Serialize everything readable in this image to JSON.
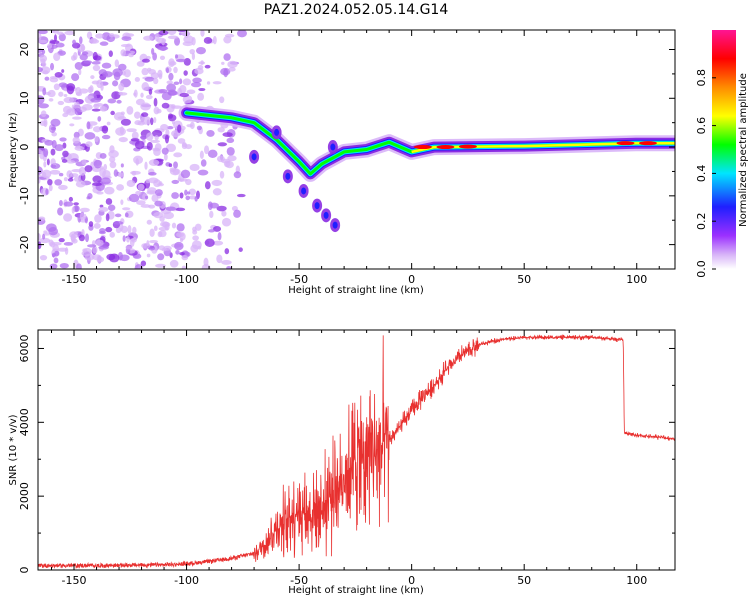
{
  "title": "PAZ1.2024.052.05.14.G14",
  "chart_data": [
    {
      "type": "heatmap",
      "xlabel": "Height of straight line (km)",
      "ylabel": "Frequency (Hz)",
      "xlim": [
        -166,
        117
      ],
      "ylim": [
        -25,
        24
      ],
      "xticks": [
        -150,
        -100,
        -50,
        0,
        50,
        100
      ],
      "yticks": [
        -20,
        -10,
        0,
        10,
        20
      ],
      "colorbar": {
        "label": "Normalized spectral amplitude",
        "range": [
          0,
          1
        ],
        "ticks": [
          0.0,
          0.2,
          0.4,
          0.6,
          0.8
        ],
        "colors": [
          "#ffffff",
          "#d8b4f8",
          "#8a2be2",
          "#1f1fff",
          "#00e5ff",
          "#00ff00",
          "#ffff00",
          "#ff8c00",
          "#ff0000",
          "#ff1493"
        ]
      },
      "ridge": [
        {
          "x": -100,
          "y": 7.0
        },
        {
          "x": -90,
          "y": 6.5
        },
        {
          "x": -80,
          "y": 6.0
        },
        {
          "x": -70,
          "y": 5.0
        },
        {
          "x": -60,
          "y": 1.5
        },
        {
          "x": -50,
          "y": -3.0
        },
        {
          "x": -45,
          "y": -5.5
        },
        {
          "x": -40,
          "y": -3.5
        },
        {
          "x": -30,
          "y": -1.0
        },
        {
          "x": -20,
          "y": -0.5
        },
        {
          "x": -10,
          "y": 1.0
        },
        {
          "x": 0,
          "y": -1.0
        },
        {
          "x": 10,
          "y": 0.0
        },
        {
          "x": 50,
          "y": 0.2
        },
        {
          "x": 100,
          "y": 0.8
        },
        {
          "x": 117,
          "y": 0.8
        }
      ],
      "noise_region_x": [
        -166,
        -75
      ]
    },
    {
      "type": "line",
      "xlabel": "Height of straight line (km)",
      "ylabel": "SNR (10 * v/v)",
      "xlim": [
        -166,
        117
      ],
      "ylim": [
        0,
        6500
      ],
      "xticks": [
        -150,
        -100,
        -50,
        0,
        50,
        100
      ],
      "yticks": [
        0,
        2000,
        4000,
        6000
      ],
      "series": [
        {
          "color": "#e8302f",
          "x": [
            -166,
            -140,
            -110,
            -100,
            -90,
            -80,
            -70,
            -65,
            -60,
            -55,
            -50,
            -45,
            -40,
            -35,
            -30,
            -25,
            -20,
            -15,
            -10,
            -5,
            0,
            5,
            10,
            15,
            20,
            25,
            30,
            40,
            50,
            60,
            70,
            80,
            90,
            94,
            94.5,
            100,
            110,
            117
          ],
          "y": [
            120,
            120,
            140,
            170,
            230,
            320,
            450,
            700,
            1100,
            1400,
            1650,
            1500,
            1700,
            2100,
            2600,
            3000,
            3100,
            3300,
            3500,
            3900,
            4300,
            4700,
            5000,
            5400,
            5700,
            5950,
            6100,
            6250,
            6300,
            6300,
            6300,
            6300,
            6250,
            6250,
            3700,
            3650,
            3600,
            3550
          ]
        }
      ]
    }
  ]
}
